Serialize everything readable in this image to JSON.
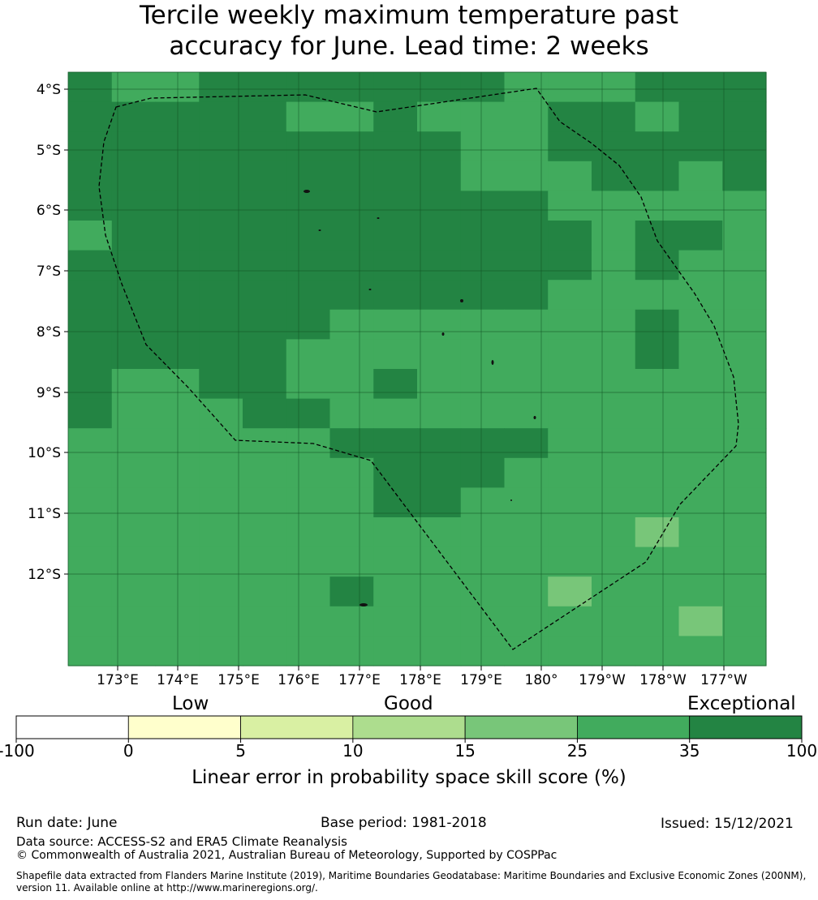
{
  "title": {
    "line1": "Tercile weekly maximum temperature past",
    "line2": "accuracy for June. Lead time: 2 weeks"
  },
  "lat_labels": [
    "4°S",
    "5°S",
    "6°S",
    "7°S",
    "8°S",
    "9°S",
    "10°S",
    "11°S",
    "12°S"
  ],
  "lon_labels": [
    "173°E",
    "174°E",
    "175°E",
    "176°E",
    "177°E",
    "178°E",
    "179°E",
    "180°",
    "179°W",
    "178°W",
    "177°W"
  ],
  "grid": {
    "legend": "A=25-35 (medium green), B=35-100 (dark green), C=15-25 (light green), D=10-15",
    "rows": [
      "BAABBBBBBBAAABBB",
      "BBBBBAABAAABBABB",
      "BBBBBBBBBAABBBBB",
      "BBBBBBBBBAAABBAB",
      "BBBBBBBBBBBAAAAA",
      "ABBBBBBBBBBBABBA",
      "BBBBBBBBBBBBABAA",
      "BBBBBBBBBBBAAAAA",
      "BBBBBBAAAAAAABAA",
      "BBBBBAAAAAAAABAA",
      "BAABBAABAAAAAAAA",
      "BAAABBAAAAAAAAAA",
      "AAAAAABBBBBAAAAA",
      "AAAAAAABBBAAAAAA",
      "AAAAAAABBAAAAAAA",
      "AAAAAAAAAAAAACAA",
      "AAAAAAAAAAAAAAAA",
      "AAAAAABAAAACAAAA",
      "AAAAAAAAAAAAAACA",
      "AAAAAAAAAAAAAAAA"
    ]
  },
  "colorbar": {
    "categories": [
      "Low",
      "Good",
      "Exceptional"
    ],
    "ticks": [
      "-100",
      "0",
      "5",
      "10",
      "15",
      "25",
      "35",
      "100"
    ],
    "colors": [
      "#ffffff",
      "#ffffcc",
      "#d9f0a3",
      "#addd8e",
      "#78c679",
      "#41ab5d",
      "#238443"
    ],
    "label": "Linear error in probability space skill score (%)"
  },
  "footer": {
    "run_date": "Run date: June",
    "base_period": "Base period: 1981-2018",
    "issued": "Issued: 15/12/2021",
    "data_source": "Data source: ACCESS-S2 and ERA5 Climate Reanalysis",
    "copyright": "© Commonwealth of Australia 2021, Australian Bureau of Meteorology, Supported by COSPPac",
    "shapefile_line1": "Shapefile data extracted from Flanders Marine Institute (2019), Maritime Boundaries Geodatabase: Maritime Boundaries and Exclusive Economic Zones (200NM),",
    "shapefile_line2": "version 11. Available online at http://www.marineregions.org/."
  }
}
